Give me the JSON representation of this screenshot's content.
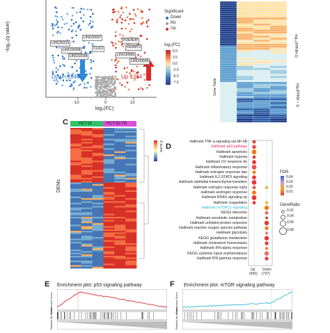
{
  "panel_letters": {
    "c": "C",
    "d": "D",
    "e": "E",
    "f": "F"
  },
  "volcano": {
    "xlabel": "log₂(FC)",
    "ylabel": "-log₁₀(q value)",
    "xticks": [
      "-10",
      "0",
      "10"
    ],
    "down_label": "Down 1849",
    "up_label": "Up 1384",
    "legend_title": "Significant",
    "legend_items": [
      {
        "label": "Down",
        "color": "#2b6cc4"
      },
      {
        "label": "No",
        "color": "#9e9e9e"
      },
      {
        "label": "Up",
        "color": "#d62b2b"
      }
    ],
    "fc_legend_title": "log₂(FC)",
    "fc_ticks": [
      "5.0",
      "2.5",
      "0.0",
      "-2.5",
      "-5.0",
      "-7.5"
    ],
    "gene_labels_left": [
      "LINC00313",
      "LINC00608",
      "LINC02038",
      "CLIC2",
      "LINC00607"
    ],
    "gene_labels_right": [
      "LINC00866",
      "FERMT3",
      "PDE4DIP",
      "LINC00649"
    ]
  },
  "heatmap_b": {
    "right_labels": [
      "-log₁₀(FPKM+1)",
      "log₂(FPKM + 1)"
    ],
    "side_label": "Gene Table"
  },
  "heatmap_c": {
    "col_groups": [
      {
        "label": "HCT15",
        "color": "#2fc46a"
      },
      {
        "label": "HCT15-TR",
        "color": "#d84fd8"
      }
    ],
    "ylabel": "DEMs",
    "colorbar_label": "Z-score"
  },
  "dotplot": {
    "terms": [
      "Hallmark TNF-a signaling via NF-kB",
      "Hallmark p53 pathway",
      "Hallmark apoptosis",
      "Hallmark hypoxia",
      "Hallmark UV response dn",
      "Hallmark inflammatory response",
      "Hallmark estrogen response late",
      "Hallmark IL2-STAT5 signaling",
      "Hallmark epithelial mesenchymal transition",
      "Hallmark estrogen response early",
      "Hallmark androgen response",
      "Hallmark KRAS signaling up",
      "Hallmark coagulation",
      "Hallmark mTORC1 signaling",
      "KEGG ribosome",
      "Hallmark xenobiotic metabolism",
      "Hallmark unfolded protein response",
      "Hallmark reactive oxygen species pathway",
      "Hallmark glycolysis",
      "KEGG glutathione metabolism",
      "Hallmark cholesterol homeostasis",
      "Hallmark IFN-alpha response",
      "KEGG systemic lupus erythematosus",
      "Hallmark IFN-gamma response"
    ],
    "highlight": {
      "1": "#e0245e",
      "13": "#2bb6d6"
    },
    "x_groups": [
      "Up\n(556)",
      "Down\n(737)"
    ],
    "x_up": "Up",
    "x_up_n": "(556)",
    "x_down": "Down",
    "x_down_n": "(737)",
    "fdr_title": "FDR",
    "fdr_ticks": [
      "0.04",
      "0.03",
      "0.02",
      "0.01"
    ],
    "gene_ratio_title": "GeneRatio",
    "gene_ratio_ticks": [
      "0.02",
      "0.04",
      "0.06",
      "0.08"
    ]
  },
  "gsea_e": {
    "title": "Enrichment plot: p53 signaling pathway",
    "ylabel": "Enrichment Score",
    "ylabel2": "Ranked list metric"
  },
  "gsea_f": {
    "title": "Enrichment plot: mTOR signaling pathway",
    "ylabel": "Enrichment Score",
    "ylabel2": "Ranked list metric"
  },
  "colors": {
    "red": "#d62b2b",
    "blue": "#2b6cc4",
    "grey": "#9e9e9e",
    "cyan": "#2bb6d6",
    "crimson": "#e0245e"
  }
}
